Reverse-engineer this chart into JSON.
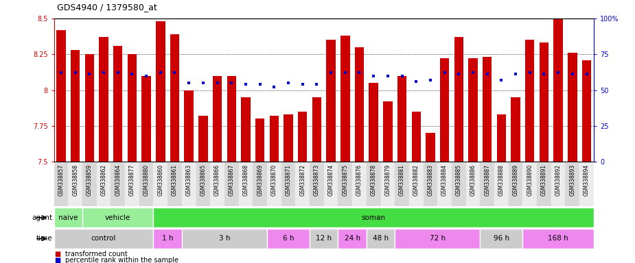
{
  "title": "GDS4940 / 1379580_at",
  "sample_labels": [
    "GSM338857",
    "GSM338858",
    "GSM338859",
    "GSM338862",
    "GSM338864",
    "GSM338877",
    "GSM338880",
    "GSM338860",
    "GSM338861",
    "GSM338863",
    "GSM338865",
    "GSM338866",
    "GSM338867",
    "GSM338868",
    "GSM338869",
    "GSM338870",
    "GSM338871",
    "GSM338872",
    "GSM338873",
    "GSM338874",
    "GSM338875",
    "GSM338876",
    "GSM338878",
    "GSM338879",
    "GSM338881",
    "GSM338882",
    "GSM338883",
    "GSM338884",
    "GSM338885",
    "GSM338886",
    "GSM338887",
    "GSM338888",
    "GSM338889",
    "GSM338890",
    "GSM338891",
    "GSM338892",
    "GSM338893",
    "GSM338894"
  ],
  "bar_values": [
    8.42,
    8.28,
    8.25,
    8.37,
    8.31,
    8.25,
    8.1,
    8.48,
    8.39,
    8.0,
    7.82,
    8.1,
    8.1,
    7.95,
    7.8,
    7.82,
    7.83,
    7.85,
    7.95,
    8.35,
    8.38,
    8.3,
    8.05,
    7.92,
    8.1,
    7.85,
    7.7,
    8.22,
    8.37,
    8.22,
    8.23,
    7.83,
    7.95,
    8.35,
    8.33,
    8.5,
    8.26,
    8.21
  ],
  "percentile_values": [
    62,
    62,
    61,
    62,
    62,
    61,
    60,
    62,
    62,
    55,
    55,
    55,
    55,
    54,
    54,
    52,
    55,
    54,
    54,
    62,
    62,
    62,
    60,
    60,
    60,
    56,
    57,
    62,
    61,
    62,
    61,
    57,
    61,
    62,
    61,
    62,
    61,
    61
  ],
  "ymin": 7.5,
  "ymax": 8.5,
  "yticks_left": [
    7.5,
    7.75,
    8.0,
    8.25,
    8.5
  ],
  "ytick_labels_left": [
    "7.5",
    "7.75",
    "8",
    "8.25",
    "8.5"
  ],
  "yticks_right": [
    0,
    25,
    50,
    75,
    100
  ],
  "ytick_labels_right": [
    "0",
    "25",
    "50",
    "75",
    "100%"
  ],
  "bar_color": "#cc0000",
  "dot_color": "#0000cc",
  "bg_color": "#ffffff",
  "agent_spans": [
    {
      "label": "naive",
      "start": 0,
      "end": 2,
      "color": "#99ee99"
    },
    {
      "label": "vehicle",
      "start": 2,
      "end": 7,
      "color": "#99ee99"
    },
    {
      "label": "soman",
      "start": 7,
      "end": 38,
      "color": "#44dd44"
    }
  ],
  "time_spans": [
    {
      "label": "control",
      "start": 0,
      "end": 7,
      "color": "#cccccc"
    },
    {
      "label": "1 h",
      "start": 7,
      "end": 9,
      "color": "#ee88ee"
    },
    {
      "label": "3 h",
      "start": 9,
      "end": 15,
      "color": "#cccccc"
    },
    {
      "label": "6 h",
      "start": 15,
      "end": 18,
      "color": "#ee88ee"
    },
    {
      "label": "12 h",
      "start": 18,
      "end": 20,
      "color": "#cccccc"
    },
    {
      "label": "24 h",
      "start": 20,
      "end": 22,
      "color": "#ee88ee"
    },
    {
      "label": "48 h",
      "start": 22,
      "end": 24,
      "color": "#cccccc"
    },
    {
      "label": "72 h",
      "start": 24,
      "end": 30,
      "color": "#ee88ee"
    },
    {
      "label": "96 h",
      "start": 30,
      "end": 33,
      "color": "#cccccc"
    },
    {
      "label": "168 h",
      "start": 33,
      "end": 38,
      "color": "#ee88ee"
    }
  ],
  "legend_red": "transformed count",
  "legend_blue": "percentile rank within the sample"
}
